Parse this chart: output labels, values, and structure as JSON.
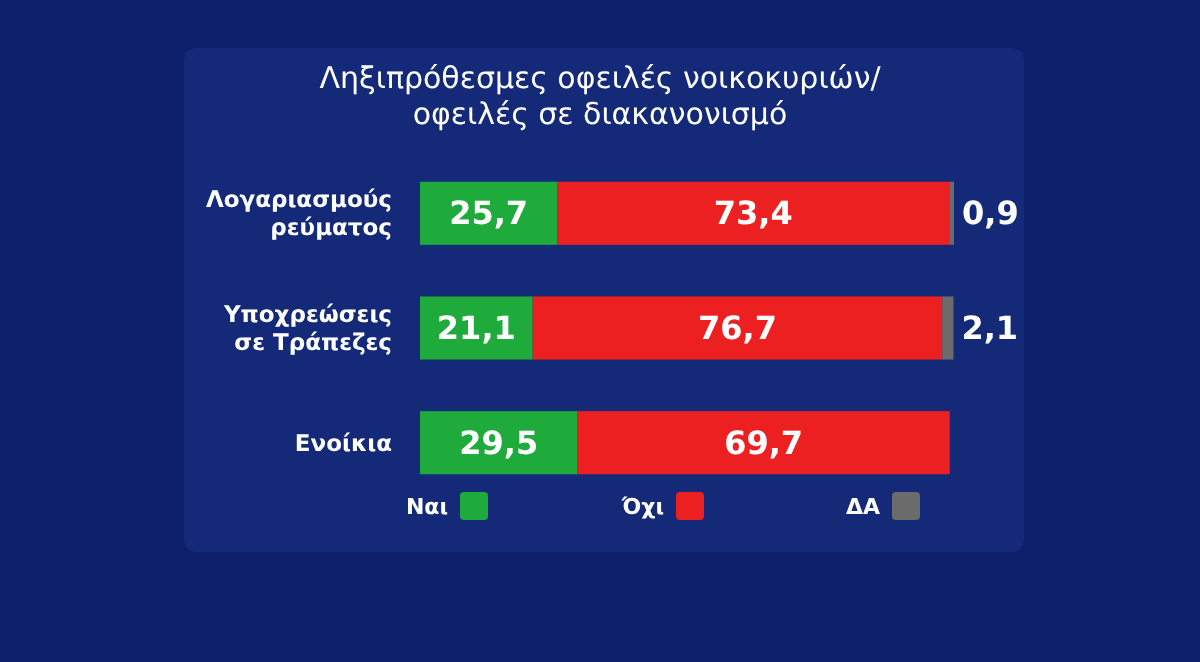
{
  "chart_data": {
    "type": "bar",
    "orientation": "horizontal",
    "stacked": true,
    "title": "Ληξιπρόθεσμες οφειλές νοικοκυριών/ οφειλές σε διακανονισμό",
    "categories": [
      "Λογαριασμούς ρεύματος",
      "Υποχρεώσεις σε Τράπεζες",
      "Ενοίκια"
    ],
    "series": [
      {
        "name": "Ναι",
        "color": "#1faa3c",
        "values": [
          25.7,
          21.1,
          29.5
        ],
        "value_labels": [
          "25,7",
          "21,1",
          "29,5"
        ]
      },
      {
        "name": "Όχι",
        "color": "#ec2020",
        "values": [
          73.4,
          76.7,
          69.7
        ],
        "value_labels": [
          "73,4",
          "76,7",
          "69,7"
        ]
      },
      {
        "name": "ΔΑ",
        "color": "#6b6b6b",
        "values": [
          0.9,
          2.1,
          null
        ],
        "value_labels": [
          "0,9",
          "2,1",
          null
        ]
      }
    ],
    "xlim": [
      0,
      100
    ],
    "legend": "bottom"
  }
}
